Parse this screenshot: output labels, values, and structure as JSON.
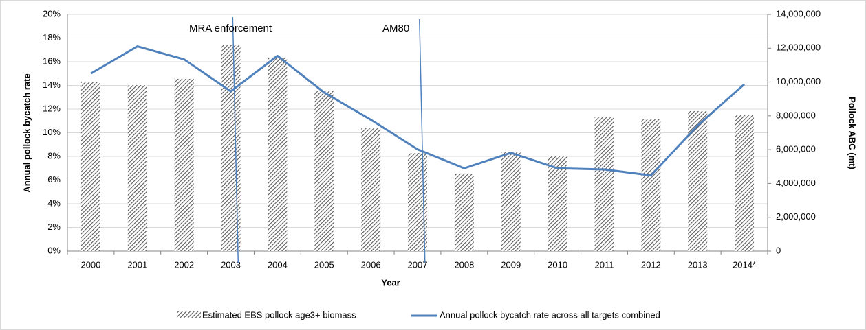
{
  "chart_data": {
    "type": "bar",
    "x_label": "Year",
    "y_label": "Annual pollock bycatch rate",
    "y2_label": "Pollock ABC (mt)",
    "categories": [
      "2000",
      "2001",
      "2002",
      "2003",
      "2004",
      "2005",
      "2006",
      "2007",
      "2008",
      "2009",
      "2010",
      "2011",
      "2012",
      "2013",
      "2014*"
    ],
    "series": [
      {
        "name": "Estimated EBS pollock age3+ biomass",
        "type": "bar",
        "axis": "y2",
        "color": "#595959",
        "values": [
          10000000,
          9820000,
          10190000,
          12200000,
          11450000,
          9500000,
          7260000,
          5800000,
          4590000,
          5840000,
          5600000,
          7910000,
          7830000,
          8280000,
          8040000
        ]
      },
      {
        "name": "Annual pollock bycatch rate across all targets combined",
        "type": "line",
        "axis": "y",
        "color": "#4f81bd",
        "values": [
          15.0,
          17.3,
          16.2,
          13.5,
          16.5,
          13.4,
          11.1,
          8.6,
          7.0,
          8.3,
          7.0,
          6.9,
          6.4,
          10.6,
          14.1
        ]
      }
    ],
    "annotations": [
      "MRA enforcement",
      "AM80"
    ],
    "ylim": [
      0,
      20
    ],
    "yticks": [
      {
        "value": 0,
        "label": "0%"
      },
      {
        "value": 2,
        "label": "2%"
      },
      {
        "value": 4,
        "label": "4%"
      },
      {
        "value": 6,
        "label": "6%"
      },
      {
        "value": 8,
        "label": "8%"
      },
      {
        "value": 10,
        "label": "10%"
      },
      {
        "value": 12,
        "label": "12%"
      },
      {
        "value": 14,
        "label": "14%"
      },
      {
        "value": 16,
        "label": "16%"
      },
      {
        "value": 18,
        "label": "18%"
      },
      {
        "value": 20,
        "label": "20%"
      }
    ],
    "y2lim": [
      0,
      14000000
    ],
    "y2ticks": [
      0,
      {
        "value": 2000000,
        "label": "2,000,000"
      },
      {
        "value": 4000000,
        "label": "4,000,000"
      },
      {
        "value": 6000000,
        "label": "6,000,000"
      },
      {
        "value": 8000000,
        "label": "8,000,000"
      },
      {
        "value": 10000000,
        "label": "10,000,000"
      },
      {
        "value": 12000000,
        "label": "12,000,000"
      },
      {
        "value": 14000000,
        "label": "14,000,000"
      }
    ],
    "grid": true,
    "legend": "bottom"
  }
}
